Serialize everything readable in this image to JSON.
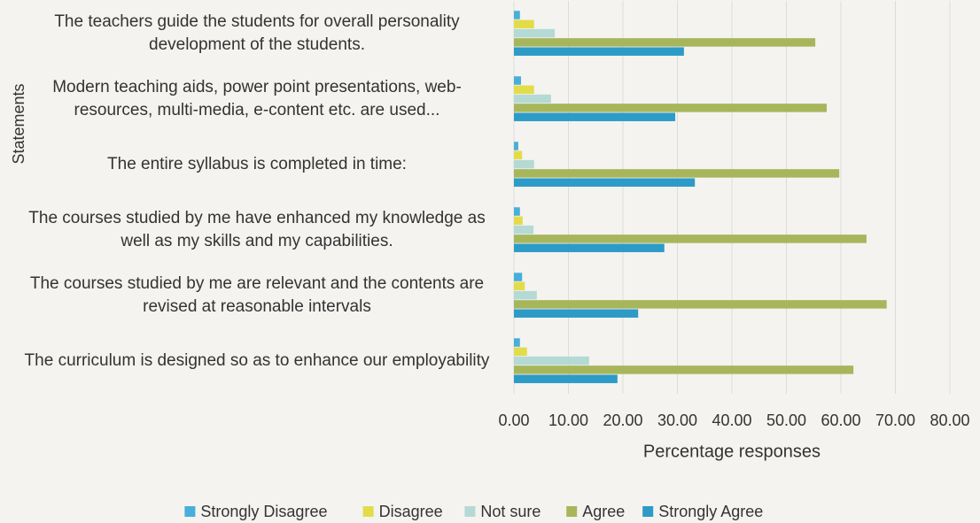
{
  "chart_data": {
    "type": "bar",
    "orientation": "horizontal",
    "categories": [
      "The teachers guide the students for overall personality development of the students.",
      "Modern teaching aids, power point presentations, web-resources, multi-media, e-content etc. are used...",
      "The entire syllabus is completed in time:",
      "The courses studied by me have enhanced my knowledge as well as my skills and my capabilities.",
      "The courses studied by me are relevant and the contents are revised at reasonable intervals",
      "The curriculum is designed so as to enhance our employability"
    ],
    "series": [
      {
        "name": "Strongly Disagree",
        "color": "#47afd9",
        "values": [
          1.1,
          1.3,
          0.8,
          1.1,
          1.5,
          1.1
        ]
      },
      {
        "name": "Disagree",
        "color": "#e3dc4a",
        "values": [
          3.7,
          3.7,
          1.5,
          1.6,
          2.0,
          2.4
        ]
      },
      {
        "name": "Not sure",
        "color": "#b5d9d4",
        "values": [
          7.5,
          6.8,
          3.7,
          3.6,
          4.2,
          13.8
        ]
      },
      {
        "name": "Agree",
        "color": "#a7b65b",
        "values": [
          55.3,
          57.4,
          59.7,
          64.7,
          68.4,
          62.3
        ]
      },
      {
        "name": "Strongly Agree",
        "color": "#2d9bc7",
        "values": [
          31.2,
          29.6,
          33.2,
          27.6,
          22.8,
          19.0
        ]
      }
    ],
    "xlabel": "Percentage responses",
    "ylabel": "Statements",
    "xlim": [
      0,
      80
    ],
    "xticks": [
      {
        "value": 0,
        "label": "0.00"
      },
      {
        "value": 10,
        "label": "10.00"
      },
      {
        "value": 20,
        "label": "20.00"
      },
      {
        "value": 30,
        "label": "30.00"
      },
      {
        "value": 40,
        "label": "40.00"
      },
      {
        "value": 50,
        "label": "50.00"
      },
      {
        "value": 60,
        "label": "60.00"
      },
      {
        "value": 70,
        "label": "70.00"
      },
      {
        "value": 80,
        "label": "80.00"
      }
    ],
    "grid": true,
    "legend": "bottom"
  }
}
